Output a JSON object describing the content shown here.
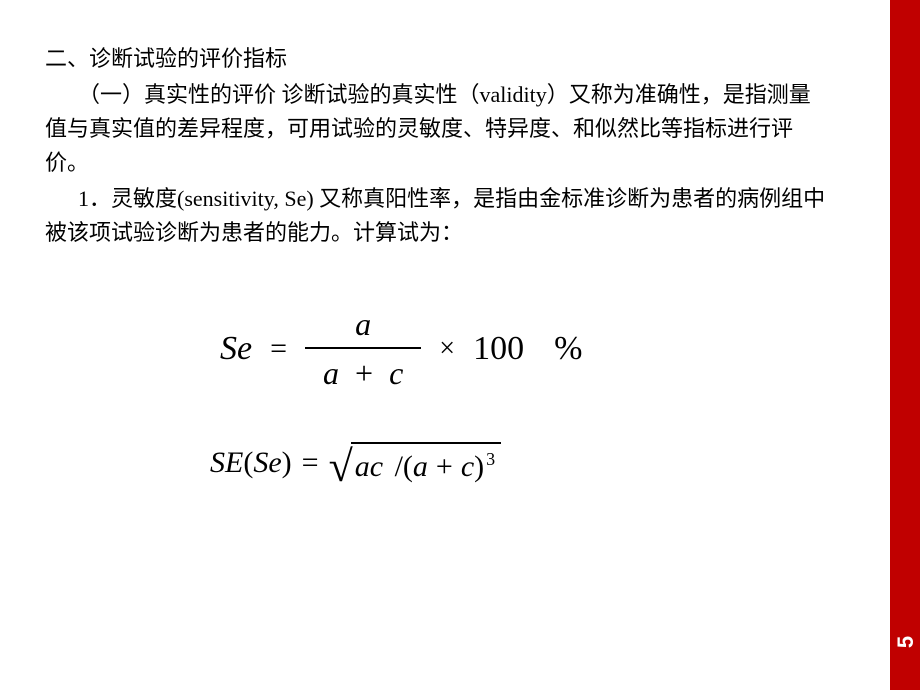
{
  "page": {
    "number": "5",
    "bar_color": "#c00000",
    "page_number_color": "#ffffff",
    "background_color": "#ffffff",
    "text_color": "#000000",
    "body_fontsize": 22,
    "formula_fontsize": 34
  },
  "text": {
    "heading": "二、诊断试验的评价指标",
    "para1": "（一）真实性的评价  诊断试验的真实性（validity）又称为准确性，是指测量值与真实值的差异程度，可用试验的灵敏度、特异度、和似然比等指标进行评价。",
    "para2": "1．灵敏度(sensitivity, Se) 又称真阳性率，是指由金标准诊断为患者的病例组中被该项试验诊断为患者的能力。计算试为："
  },
  "formula1": {
    "lhs": "Se",
    "equals": "=",
    "numerator": "a",
    "denominator_left": "a",
    "denominator_plus": "+",
    "denominator_right": "c",
    "times": "×",
    "factor": "100",
    "percent": "%"
  },
  "formula2": {
    "func": "SE",
    "open_paren": "(",
    "arg": "Se",
    "close_paren": ")",
    "equals": "=",
    "sqrt_var1": "ac",
    "slash": "/(",
    "inner_left": "a",
    "inner_plus": "+",
    "inner_right": "c",
    "close": ")",
    "exponent": "3"
  }
}
